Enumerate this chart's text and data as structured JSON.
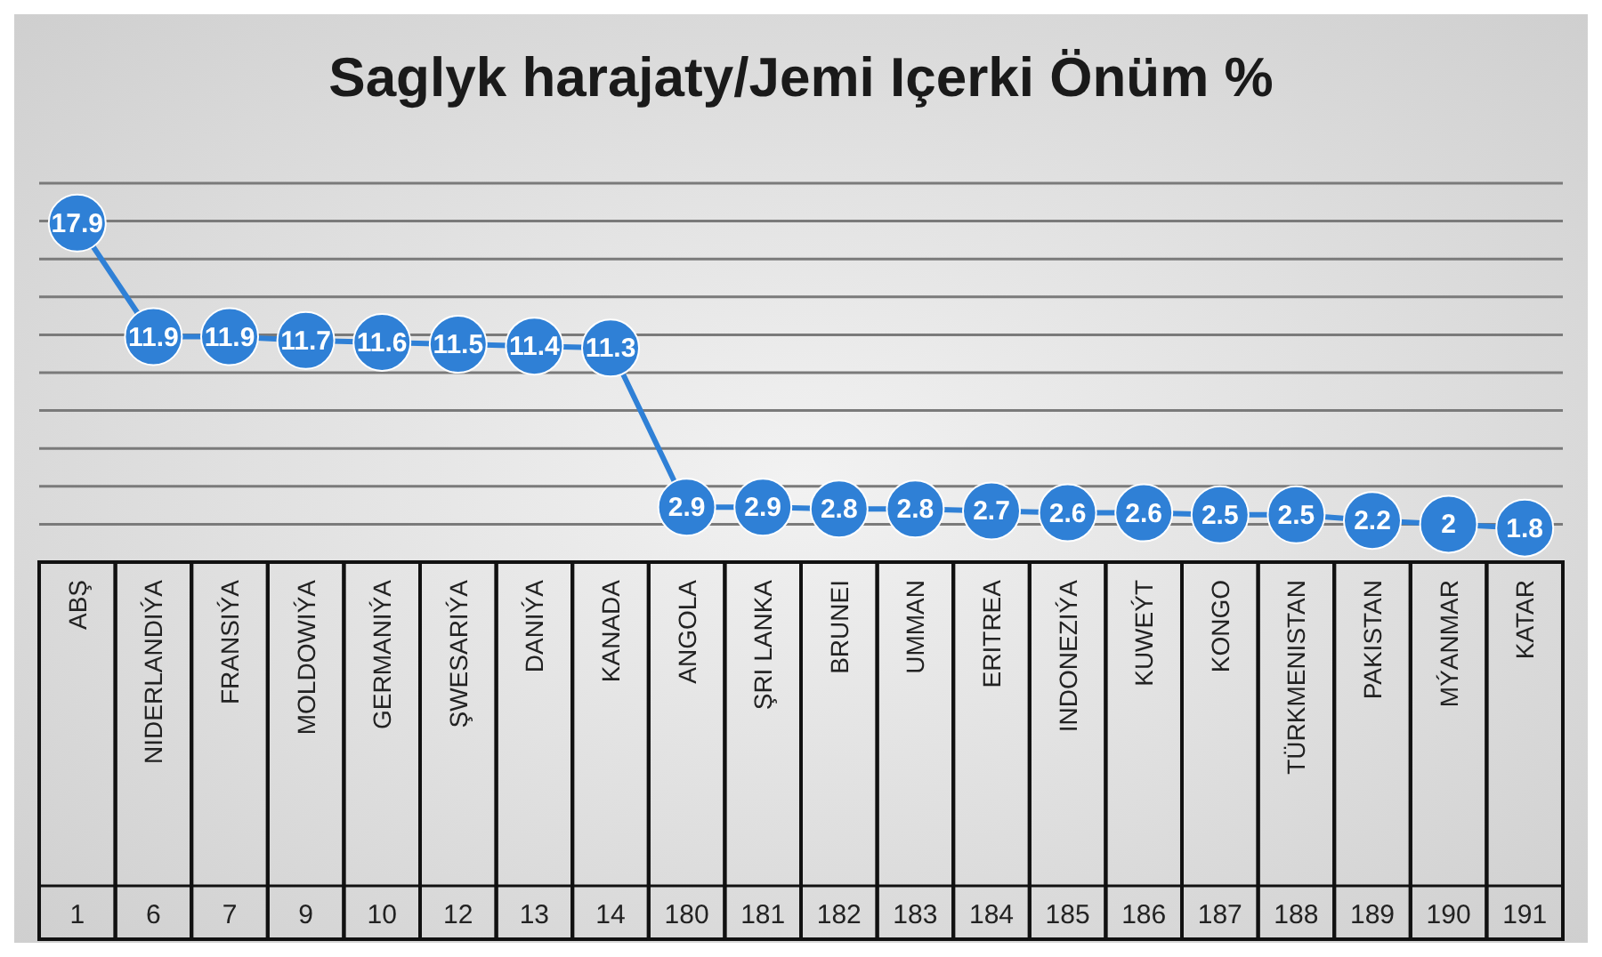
{
  "chart_data": {
    "type": "line",
    "title": "Saglyk harajaty/Jemi Içerki Önüm %",
    "categories": [
      "ABŞ",
      "NIDERLANDIÝA",
      "FRANSIÝA",
      "MOLDOWIÝA",
      "GERMANIÝA",
      "ŞWESARIÝA",
      "DANIÝA",
      "KANADA",
      "ANGOLA",
      "ŞRI LANKA",
      "BRUNEI",
      "UMMAN",
      "ERITREA",
      "INDONEZIÝA",
      "KUWEÝT",
      "KONGO",
      "TÜRKMENISTAN",
      "PAKISTAN",
      "MÝANMAR",
      "KATAR"
    ],
    "series": [
      {
        "color": "#2f80d6",
        "values": [
          17.9,
          11.9,
          11.9,
          11.7,
          11.6,
          11.5,
          11.4,
          11.3,
          2.9,
          2.9,
          2.8,
          2.8,
          2.7,
          2.6,
          2.6,
          2.5,
          2.5,
          2.2,
          2,
          1.8
        ]
      }
    ],
    "annotations": [
      "1",
      "6",
      "7",
      "9",
      "10",
      "12",
      "13",
      "14",
      "180",
      "181",
      "182",
      "183",
      "184",
      "185",
      "186",
      "187",
      "188",
      "189",
      "190",
      "191"
    ],
    "tick_labels": "x",
    "grid": "y",
    "marker": "circle",
    "line_style": "solid",
    "data_labels": true,
    "legend": false
  }
}
